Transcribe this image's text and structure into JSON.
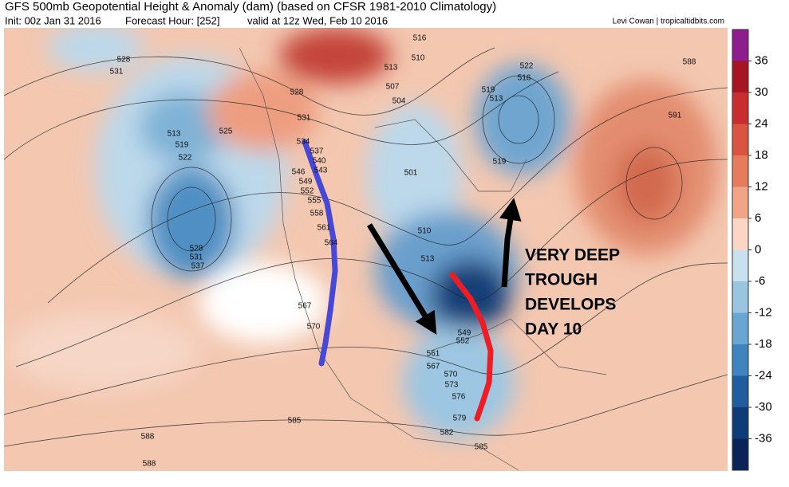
{
  "header": {
    "title": "GFS 500mb Geopotential Height & Anomaly (dam) (based on CFSR 1981-2010 Climatology)",
    "init": "Init: 00z Jan 31 2016",
    "forecast_hour": "Forecast Hour: [252]",
    "valid": "valid at 12z Wed, Feb 10 2016",
    "credit": "Levi Cowan | tropicaltidbits.com"
  },
  "colorbar": {
    "ticks": [
      36,
      30,
      24,
      18,
      12,
      6,
      0,
      -6,
      -12,
      -18,
      -24,
      -30,
      -36
    ]
  },
  "contour_labels": [
    "528",
    "531",
    "513",
    "519",
    "522",
    "528",
    "531",
    "537",
    "525",
    "528",
    "531",
    "534",
    "537",
    "540",
    "543",
    "546",
    "549",
    "552",
    "555",
    "558",
    "561",
    "564",
    "567",
    "570",
    "516",
    "510",
    "513",
    "507",
    "504",
    "501",
    "510",
    "513",
    "519",
    "513",
    "522",
    "516",
    "519",
    "588",
    "591",
    "549",
    "552",
    "561",
    "567",
    "570",
    "573",
    "576",
    "579",
    "582",
    "585",
    "585",
    "588",
    "588"
  ],
  "annotation": {
    "lines": [
      "VERY DEEP",
      "TROUGH",
      "DEVELOPS",
      "DAY 10"
    ]
  }
}
